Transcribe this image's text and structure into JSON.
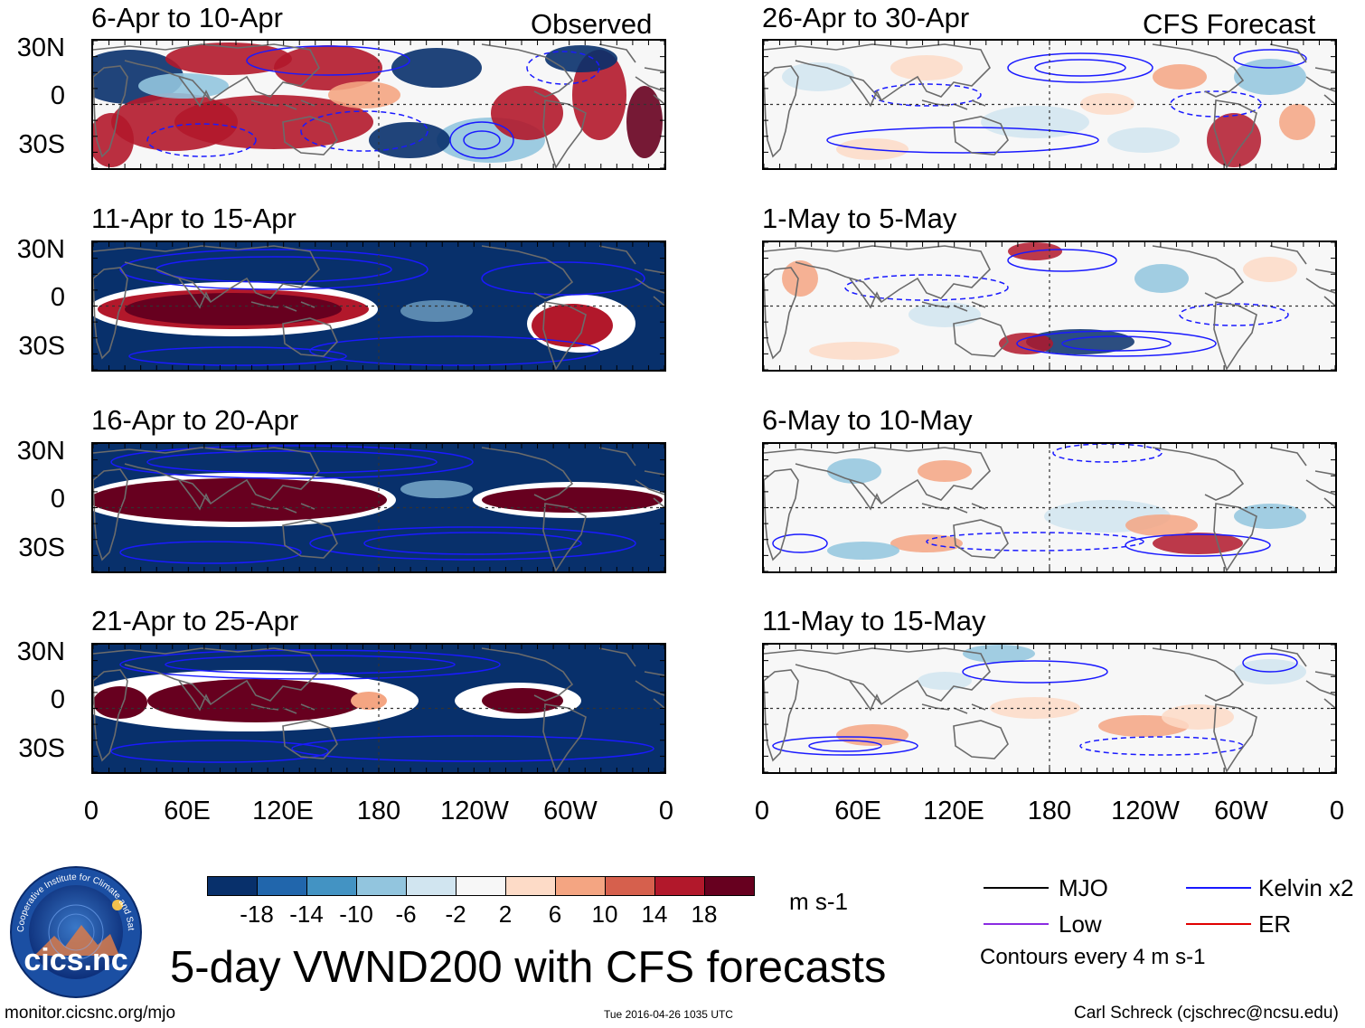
{
  "panels": {
    "left": [
      {
        "period": "6-Apr to 10-Apr",
        "tag": "Observed"
      },
      {
        "period": "11-Apr to 15-Apr"
      },
      {
        "period": "16-Apr to 20-Apr"
      },
      {
        "period": "21-Apr to 25-Apr"
      }
    ],
    "right": [
      {
        "period": "26-Apr to 30-Apr",
        "tag": "CFS Forecast"
      },
      {
        "period": "1-May to 5-May"
      },
      {
        "period": "6-May to 10-May"
      },
      {
        "period": "11-May to 15-May"
      }
    ]
  },
  "axes": {
    "y_ticks": [
      "30N",
      "0",
      "30S"
    ],
    "x_ticks": [
      "0",
      "60E",
      "120E",
      "180",
      "120W",
      "60W",
      "0"
    ]
  },
  "colorbar": {
    "colors": [
      "#08306b",
      "#2166ac",
      "#4393c3",
      "#92c5de",
      "#d1e5f0",
      "#f7f7f7",
      "#fddbc7",
      "#f4a582",
      "#d6604d",
      "#b2182b",
      "#67001f"
    ],
    "labels": [
      "-18",
      "-14",
      "-10",
      "-6",
      "-2",
      "2",
      "6",
      "10",
      "14",
      "18"
    ],
    "units": "m s-1"
  },
  "legend": {
    "mjo": "MJO",
    "kelvin": "Kelvin x2",
    "low": "Low",
    "er": "ER",
    "mjo_color": "#000000",
    "kelvin_color": "#1a1aff",
    "low_color": "#8a2be2",
    "er_color": "#e00000",
    "contours": "Contours every 4 m s-1"
  },
  "logo": {
    "ring_text": "Cooperative Institute for Climate and Satellites",
    "name": "cics.nc"
  },
  "title": "5-day VWND200 with CFS forecasts",
  "footer": {
    "url": "monitor.cicsnc.org/mjo",
    "timestamp": "Tue 2016-04-26 1035 UTC",
    "author": "Carl Schreck (cjschrec@ncsu.edu)"
  }
}
